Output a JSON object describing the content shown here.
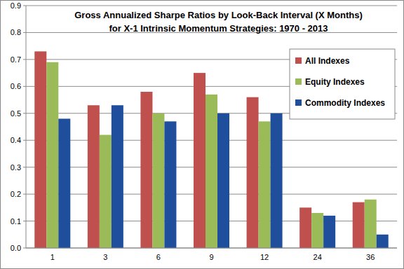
{
  "chart_data": {
    "type": "bar",
    "title": "Gross Annualized Sharpe Ratios by Look-Back Interval (X Months)\nfor X-1 Intrinsic Momentum Strategies: 1970 - 2013",
    "categories": [
      "1",
      "3",
      "6",
      "9",
      "12",
      "24",
      "36"
    ],
    "series": [
      {
        "name": "All Indexes",
        "color": "#c0504d",
        "values": [
          0.73,
          0.53,
          0.58,
          0.65,
          0.56,
          0.15,
          0.17
        ]
      },
      {
        "name": "Equity Indexes",
        "color": "#9bbb59",
        "values": [
          0.69,
          0.42,
          0.5,
          0.57,
          0.47,
          0.13,
          0.18
        ]
      },
      {
        "name": "Commodity Indexes",
        "color": "#1f4e9c",
        "values": [
          0.48,
          0.53,
          0.47,
          0.5,
          0.5,
          0.12,
          0.05
        ]
      }
    ],
    "ylim": [
      0,
      0.9
    ],
    "yticks": [
      {
        "value": 0,
        "label": "0.0"
      },
      0.1,
      0.2,
      0.3,
      0.4,
      0.5,
      0.6,
      0.7,
      0.8,
      0.9
    ],
    "grid": true,
    "legend": "upper right"
  }
}
